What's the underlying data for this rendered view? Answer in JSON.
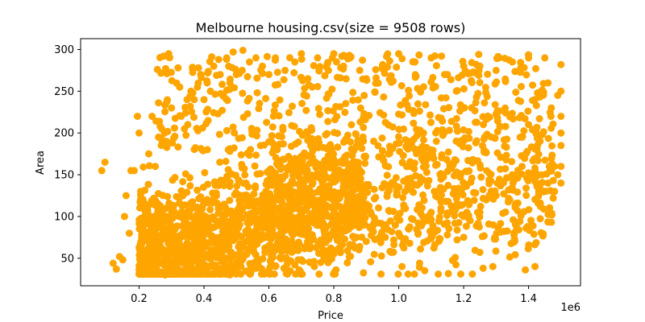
{
  "chart_data": {
    "type": "scatter",
    "title": "Melbourne housing.csv(size = 9508 rows)",
    "xlabel": "Price",
    "ylabel": "Area",
    "x_offset_text": "1e6",
    "xlim": [
      20000,
      1560000
    ],
    "ylim": [
      17,
      313
    ],
    "x_ticks": [
      200000,
      400000,
      600000,
      800000,
      1000000,
      1200000,
      1400000
    ],
    "x_tick_labels": [
      "0.2",
      "0.4",
      "0.6",
      "0.8",
      "1.0",
      "1.2",
      "1.4"
    ],
    "y_ticks": [
      50,
      100,
      150,
      200,
      250,
      300
    ],
    "y_tick_labels": [
      "50",
      "100",
      "150",
      "200",
      "250",
      "300"
    ],
    "grid": false,
    "marker_color": "#ffa500",
    "series": [
      {
        "values": [
          [
            85000,
            155
          ],
          [
            95000,
            165
          ],
          [
            120000,
            44
          ],
          [
            130000,
            37
          ],
          [
            140000,
            52
          ],
          [
            150000,
            48
          ],
          [
            155000,
            100
          ],
          [
            160000,
            125
          ],
          [
            170000,
            80
          ],
          [
            175000,
            155
          ],
          [
            185000,
            155
          ],
          [
            195000,
            220
          ],
          [
            200000,
            200
          ],
          [
            205000,
            130
          ],
          [
            210000,
            95
          ],
          [
            230000,
            175
          ],
          [
            240000,
            220
          ],
          [
            250000,
            160
          ],
          [
            260000,
            195
          ],
          [
            270000,
            205
          ],
          [
            285000,
            190
          ],
          [
            300000,
            230
          ],
          [
            320000,
            278
          ],
          [
            330000,
            220
          ],
          [
            340000,
            205
          ],
          [
            350000,
            210
          ],
          [
            360000,
            250
          ],
          [
            370000,
            240
          ],
          [
            380000,
            255
          ],
          [
            390000,
            270
          ],
          [
            400000,
            240
          ],
          [
            410000,
            260
          ],
          [
            420000,
            250
          ],
          [
            430000,
            280
          ],
          [
            450000,
            270
          ],
          [
            460000,
            245
          ],
          [
            470000,
            290
          ],
          [
            480000,
            260
          ],
          [
            490000,
            297
          ],
          [
            500000,
            270
          ],
          [
            520000,
            299
          ],
          [
            540000,
            285
          ],
          [
            560000,
            290
          ],
          [
            580000,
            280
          ],
          [
            600000,
            270
          ],
          [
            620000,
            290
          ],
          [
            650000,
            275
          ],
          [
            680000,
            285
          ],
          [
            700000,
            295
          ],
          [
            720000,
            265
          ],
          [
            750000,
            290
          ],
          [
            780000,
            283
          ],
          [
            800000,
            295
          ],
          [
            830000,
            280
          ],
          [
            850000,
            290
          ],
          [
            880000,
            275
          ],
          [
            900000,
            265
          ],
          [
            950000,
            280
          ],
          [
            1000000,
            295
          ],
          [
            1050000,
            285
          ],
          [
            1100000,
            290
          ],
          [
            1150000,
            270
          ],
          [
            1200000,
            280
          ],
          [
            1250000,
            280
          ],
          [
            1300000,
            275
          ],
          [
            1350000,
            285
          ],
          [
            1400000,
            290
          ],
          [
            1450000,
            290
          ],
          [
            1500000,
            282
          ],
          [
            1500000,
            220
          ],
          [
            1480000,
            130
          ],
          [
            1460000,
            140
          ],
          [
            1420000,
            155
          ],
          [
            1380000,
            160
          ],
          [
            1350000,
            150
          ],
          [
            1320000,
            140
          ],
          [
            1300000,
            125
          ],
          [
            1270000,
            120
          ],
          [
            1250000,
            105
          ],
          [
            1220000,
            95
          ],
          [
            1200000,
            100
          ],
          [
            1180000,
            72
          ],
          [
            1150000,
            78
          ],
          [
            1130000,
            110
          ],
          [
            1100000,
            105
          ],
          [
            1060000,
            92
          ],
          [
            1030000,
            85
          ],
          [
            1000000,
            80
          ],
          [
            960000,
            90
          ],
          [
            920000,
            88
          ],
          [
            900000,
            70
          ],
          [
            870000,
            75
          ],
          [
            850000,
            65
          ],
          [
            820000,
            60
          ],
          [
            800000,
            55
          ],
          [
            780000,
            50
          ],
          [
            760000,
            45
          ],
          [
            740000,
            40
          ],
          [
            700000,
            48
          ],
          [
            680000,
            42
          ],
          [
            650000,
            50
          ],
          [
            620000,
            40
          ],
          [
            600000,
            35
          ],
          [
            560000,
            38
          ],
          [
            540000,
            32
          ],
          [
            500000,
            45
          ],
          [
            480000,
            30
          ],
          [
            450000,
            35
          ],
          [
            420000,
            40
          ],
          [
            400000,
            33
          ],
          [
            380000,
            35
          ],
          [
            360000,
            31
          ],
          [
            340000,
            33
          ],
          [
            320000,
            34
          ],
          [
            300000,
            35
          ],
          [
            280000,
            30
          ],
          [
            260000,
            33
          ],
          [
            240000,
            32
          ],
          [
            220000,
            34
          ],
          [
            1010000,
            40
          ],
          [
            1080000,
            35
          ],
          [
            1200000,
            75
          ],
          [
            1250000,
            57
          ],
          [
            1260000,
            38
          ],
          [
            1290000,
            40
          ],
          [
            1360000,
            90
          ],
          [
            1370000,
            84
          ],
          [
            1390000,
            36
          ],
          [
            1420000,
            40
          ],
          [
            1380000,
            195
          ],
          [
            1400000,
            210
          ],
          [
            1420000,
            240
          ],
          [
            1440000,
            250
          ],
          [
            1460000,
            260
          ],
          [
            1470000,
            230
          ],
          [
            1490000,
            245
          ],
          [
            1500000,
            250
          ],
          [
            1500000,
            200
          ],
          [
            1500000,
            185
          ],
          [
            1480000,
            160
          ],
          [
            1500000,
            160
          ],
          [
            1490000,
            150
          ],
          [
            1500000,
            140
          ]
        ]
      }
    ]
  }
}
